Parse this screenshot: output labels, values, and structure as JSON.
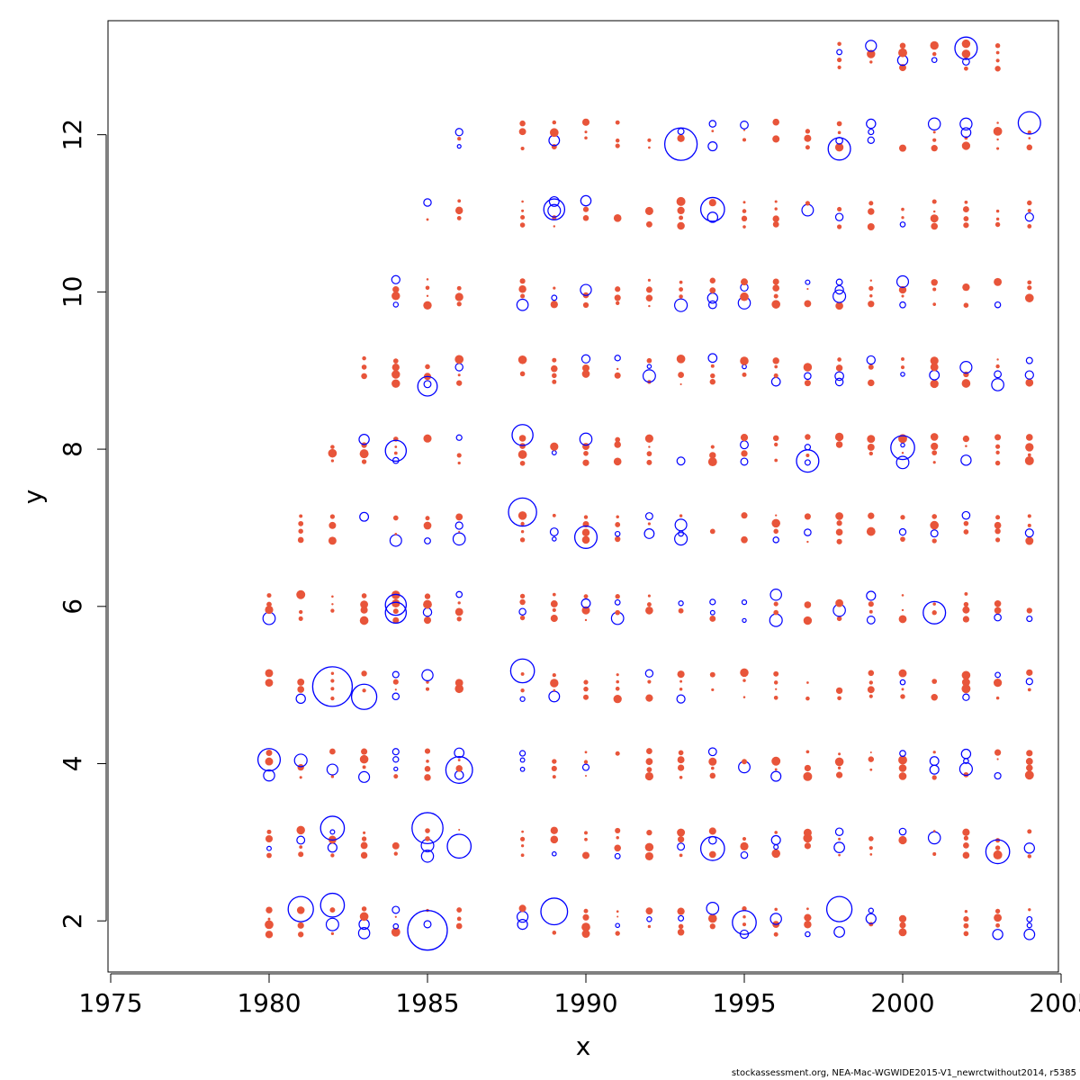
{
  "chart_data": {
    "type": "scatter",
    "subtype": "bubble",
    "title": "",
    "xlabel": "x",
    "ylabel": "y",
    "xlim": [
      1975,
      2005
    ],
    "ylim": [
      1.35,
      13.45
    ],
    "x_ticks": [
      1975,
      1980,
      1985,
      1990,
      1995,
      2000,
      2005
    ],
    "y_ticks": [
      2,
      4,
      6,
      8,
      10,
      12
    ],
    "x_tick_labels": [
      "1975",
      "1980",
      "1985",
      "1990",
      "1995",
      "2000",
      "2005"
    ],
    "y_tick_labels": [
      "2",
      "4",
      "6",
      "8",
      "10",
      "12"
    ],
    "grid": false,
    "legend": "none",
    "colors": {
      "filled": "#e8553a",
      "open": "#0000ff"
    },
    "year_ages": [
      {
        "year": 1980,
        "ages": [
          2,
          3,
          4,
          5,
          6
        ]
      },
      {
        "year": 1981,
        "ages": [
          2,
          3,
          4,
          5,
          6,
          7
        ]
      },
      {
        "year": 1982,
        "ages": [
          2,
          3,
          4,
          5,
          6,
          7,
          8
        ]
      },
      {
        "year": 1983,
        "ages": [
          2,
          3,
          4,
          5,
          6,
          7,
          8,
          9
        ]
      },
      {
        "year": 1984,
        "ages": [
          2,
          3,
          4,
          5,
          6,
          7,
          8,
          9,
          10
        ]
      },
      {
        "year": 1985,
        "ages": [
          2,
          3,
          4,
          5,
          6,
          7,
          8,
          9,
          10,
          11
        ]
      },
      {
        "year": 1986,
        "ages": [
          2,
          3,
          4,
          5,
          6,
          7,
          8,
          9,
          10,
          11,
          12
        ]
      },
      {
        "year": 1988,
        "ages": [
          2,
          3,
          4,
          5,
          6,
          7,
          8,
          9,
          10,
          11,
          12
        ]
      },
      {
        "year": 1989,
        "ages": [
          2,
          3,
          4,
          5,
          6,
          7,
          8,
          9,
          10,
          11,
          12
        ]
      },
      {
        "year": 1990,
        "ages": [
          2,
          3,
          4,
          5,
          6,
          7,
          8,
          9,
          10,
          11,
          12
        ]
      },
      {
        "year": 1991,
        "ages": [
          2,
          3,
          4,
          5,
          6,
          7,
          8,
          9,
          10,
          11,
          12
        ]
      },
      {
        "year": 1992,
        "ages": [
          2,
          3,
          4,
          5,
          6,
          7,
          8,
          9,
          10,
          11,
          12
        ]
      },
      {
        "year": 1993,
        "ages": [
          2,
          3,
          4,
          5,
          6,
          7,
          8,
          9,
          10,
          11,
          12
        ]
      },
      {
        "year": 1994,
        "ages": [
          2,
          3,
          4,
          5,
          6,
          7,
          8,
          9,
          10,
          11,
          12
        ]
      },
      {
        "year": 1995,
        "ages": [
          2,
          3,
          4,
          5,
          6,
          7,
          8,
          9,
          10,
          11,
          12
        ]
      },
      {
        "year": 1996,
        "ages": [
          2,
          3,
          4,
          5,
          6,
          7,
          8,
          9,
          10,
          11,
          12
        ]
      },
      {
        "year": 1997,
        "ages": [
          2,
          3,
          4,
          5,
          6,
          7,
          8,
          9,
          10,
          11,
          12
        ]
      },
      {
        "year": 1998,
        "ages": [
          2,
          3,
          4,
          5,
          6,
          7,
          8,
          9,
          10,
          11,
          12,
          13
        ]
      },
      {
        "year": 1999,
        "ages": [
          2,
          3,
          4,
          5,
          6,
          7,
          8,
          9,
          10,
          11,
          12,
          13
        ]
      },
      {
        "year": 2000,
        "ages": [
          2,
          3,
          4,
          5,
          6,
          7,
          8,
          9,
          10,
          11,
          12,
          13
        ]
      },
      {
        "year": 2001,
        "ages": [
          2,
          3,
          4,
          5,
          6,
          7,
          8,
          9,
          10,
          11,
          12,
          13
        ]
      },
      {
        "year": 2002,
        "ages": [
          2,
          3,
          4,
          5,
          6,
          7,
          8,
          9,
          10,
          11,
          12,
          13
        ]
      },
      {
        "year": 2003,
        "ages": [
          2,
          3,
          4,
          5,
          6,
          7,
          8,
          9,
          10,
          11,
          12,
          13
        ]
      },
      {
        "year": 2004,
        "ages": [
          2,
          3,
          4,
          5,
          6,
          7,
          8,
          9,
          10,
          11,
          12
        ]
      }
    ],
    "notable_points": [
      {
        "x": 1980,
        "y": 4.05,
        "size": 0.4,
        "kind": "open"
      },
      {
        "x": 1981,
        "y": 2.15,
        "size": 0.5,
        "kind": "open"
      },
      {
        "x": 1982,
        "y": 4.98,
        "size": 1.0,
        "kind": "open"
      },
      {
        "x": 1982,
        "y": 3.18,
        "size": 0.45,
        "kind": "open"
      },
      {
        "x": 1982,
        "y": 2.2,
        "size": 0.45,
        "kind": "open"
      },
      {
        "x": 1983,
        "y": 4.85,
        "size": 0.5,
        "kind": "open"
      },
      {
        "x": 1984,
        "y": 6.02,
        "size": 0.35,
        "kind": "open"
      },
      {
        "x": 1984,
        "y": 5.92,
        "size": 0.35,
        "kind": "open"
      },
      {
        "x": 1984,
        "y": 7.98,
        "size": 0.35,
        "kind": "open"
      },
      {
        "x": 1985,
        "y": 1.88,
        "size": 1.0,
        "kind": "open"
      },
      {
        "x": 1985,
        "y": 3.18,
        "size": 0.7,
        "kind": "open"
      },
      {
        "x": 1985,
        "y": 8.8,
        "size": 0.3,
        "kind": "open"
      },
      {
        "x": 1986,
        "y": 3.92,
        "size": 0.55,
        "kind": "open"
      },
      {
        "x": 1986,
        "y": 2.95,
        "size": 0.45,
        "kind": "open"
      },
      {
        "x": 1988,
        "y": 7.2,
        "size": 0.6,
        "kind": "open"
      },
      {
        "x": 1988,
        "y": 5.18,
        "size": 0.45,
        "kind": "open"
      },
      {
        "x": 1988,
        "y": 8.18,
        "size": 0.35,
        "kind": "open"
      },
      {
        "x": 1989,
        "y": 2.12,
        "size": 0.55,
        "kind": "open"
      },
      {
        "x": 1989,
        "y": 11.05,
        "size": 0.35,
        "kind": "open"
      },
      {
        "x": 1990,
        "y": 6.88,
        "size": 0.4,
        "kind": "open"
      },
      {
        "x": 1993,
        "y": 11.88,
        "size": 0.75,
        "kind": "open"
      },
      {
        "x": 1994,
        "y": 11.05,
        "size": 0.45,
        "kind": "open"
      },
      {
        "x": 1994,
        "y": 2.92,
        "size": 0.45,
        "kind": "open"
      },
      {
        "x": 1995,
        "y": 1.98,
        "size": 0.45,
        "kind": "open"
      },
      {
        "x": 1997,
        "y": 7.85,
        "size": 0.4,
        "kind": "open"
      },
      {
        "x": 1998,
        "y": 2.15,
        "size": 0.5,
        "kind": "open"
      },
      {
        "x": 1998,
        "y": 11.82,
        "size": 0.4,
        "kind": "open"
      },
      {
        "x": 2000,
        "y": 8.02,
        "size": 0.45,
        "kind": "open"
      },
      {
        "x": 2001,
        "y": 5.92,
        "size": 0.4,
        "kind": "open"
      },
      {
        "x": 2002,
        "y": 13.1,
        "size": 0.4,
        "kind": "open"
      },
      {
        "x": 2003,
        "y": 2.88,
        "size": 0.45,
        "kind": "open"
      },
      {
        "x": 2004,
        "y": 12.15,
        "size": 0.4,
        "kind": "open"
      }
    ]
  },
  "footer": {
    "credit": "stockassessment.org, NEA-Mac-WGWIDE2015-V1_newrctwithout2014, r5385"
  }
}
